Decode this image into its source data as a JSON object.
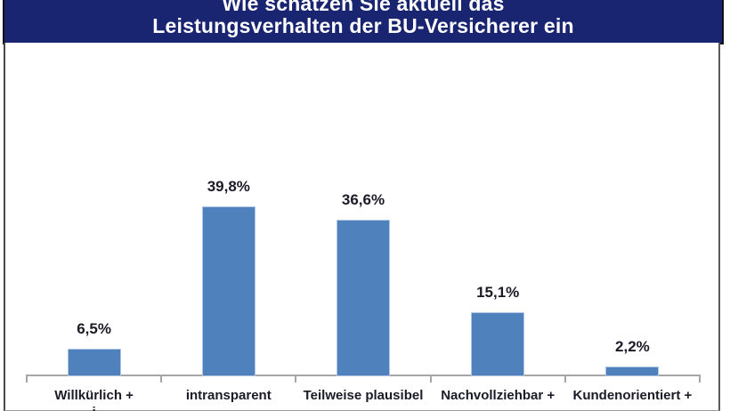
{
  "header": {
    "title_line1": "Wie schätzen Sie aktuell das",
    "title_line2": "Leistungsverhalten der BU-Versicherer ein",
    "bg_color": "#1A2572",
    "text_color": "#FFFFFF"
  },
  "chart_data": {
    "type": "bar",
    "title": "Wie schätzen Sie aktuell das Leistungsverhalten der BU-Versicherer ein",
    "categories": [
      "Willkürlich +",
      "intransparent",
      "Teilweise plausibel",
      "Nachvollziehbar +",
      "Kundenorientiert +"
    ],
    "values": [
      6.5,
      39.8,
      36.6,
      15.1,
      2.2
    ],
    "value_labels": [
      "6,5%",
      "39,8%",
      "36,6%",
      "15,1%",
      "2,2%"
    ],
    "first_category_second_line_clipped": "i",
    "xlabel": "",
    "ylabel": "",
    "ylim": [
      0,
      45
    ],
    "grid": false,
    "legend": false,
    "bar_color": "#4F81BD",
    "bar_border_color": "#AEC6E4",
    "axis_color": "#A6A6A6",
    "label_color": "#1B1B27"
  }
}
